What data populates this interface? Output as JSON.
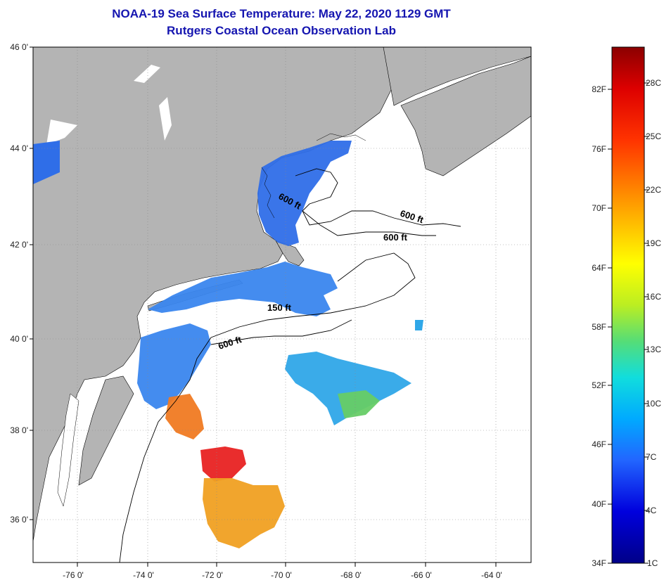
{
  "header": {
    "title": "NOAA-19 Sea Surface Temperature:  May 22, 2020 1129 GMT",
    "subtitle": "Rutgers Coastal Ocean Observation Lab"
  },
  "map": {
    "lat_labels": [
      "46 0'",
      "44 0'",
      "42 0'",
      "40 0'",
      "38 0'",
      "36 0'"
    ],
    "lon_labels": [
      "-76 0'",
      "-74 0'",
      "-72 0'",
      "-70 0'",
      "-68 0'",
      "-66 0'",
      "-64 0'"
    ],
    "contour_labels": [
      "600 ft",
      "600 ft",
      "600 ft",
      "150 ft",
      "600 ft"
    ]
  },
  "colorbar": {
    "fahrenheit_labels": [
      "82F",
      "76F",
      "70F",
      "64F",
      "58F",
      "52F",
      "46F",
      "40F",
      "34F"
    ],
    "celsius_labels": [
      "28C",
      "25C",
      "22C",
      "19C",
      "16C",
      "13C",
      "10C",
      "7C",
      "4C",
      "1C"
    ],
    "colors": [
      "#8b0000",
      "#dd0000",
      "#ff3300",
      "#ff8800",
      "#ffcc00",
      "#ffff00",
      "#bbee22",
      "#55dd77",
      "#11dddd",
      "#00aaff",
      "#2266ff",
      "#0000dd",
      "#000088"
    ]
  }
}
